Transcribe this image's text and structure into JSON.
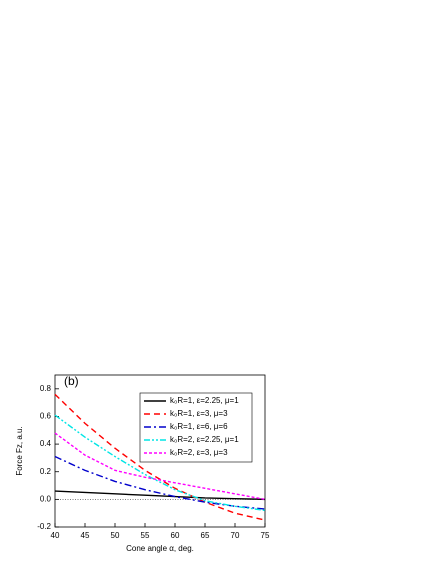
{
  "chart_data": {
    "type": "line",
    "annotation": "(b)",
    "x_label": "Cone angle α, deg.",
    "y_label": "Force Fz, a.u.",
    "x": [
      40,
      45,
      50,
      55,
      60,
      65,
      70,
      75
    ],
    "xlim": [
      40,
      75
    ],
    "xticks": [
      40,
      45,
      50,
      55,
      60,
      65,
      70,
      75
    ],
    "ylim": [
      -0.2,
      0.9
    ],
    "yticks": [
      {
        "value": -0.2,
        "label": "-0.2"
      },
      {
        "value": 0,
        "label": "0.0"
      },
      {
        "value": 0.2,
        "label": "0.2"
      },
      {
        "value": 0.4,
        "label": "0.4"
      },
      {
        "value": 0.6,
        "label": "0.6"
      },
      {
        "value": 0.8,
        "label": "0.8"
      }
    ],
    "legend": "upper right",
    "series": [
      {
        "name": "k₀R=1, ε=2.25, μ=1",
        "color": "#000000",
        "dash": "none",
        "values": [
          0.06,
          0.05,
          0.04,
          0.03,
          0.02,
          0.01,
          0.005,
          0.0
        ]
      },
      {
        "name": "k₀R=1, ε=3, μ=3",
        "color": "#ff0000",
        "dash": "6 4",
        "values": [
          0.76,
          0.55,
          0.37,
          0.21,
          0.08,
          -0.02,
          -0.1,
          -0.15
        ]
      },
      {
        "name": "k₀R=1, ε=6, μ=6",
        "color": "#0000cc",
        "dash": "7 3 2 3",
        "values": [
          0.31,
          0.21,
          0.13,
          0.07,
          0.02,
          -0.02,
          -0.05,
          -0.07
        ]
      },
      {
        "name": "k₀R=2, ε=2.25, μ=1",
        "color": "#00e5e5",
        "dash": "6 2 2 2 2 2",
        "values": [
          0.61,
          0.45,
          0.31,
          0.18,
          0.07,
          -0.01,
          -0.05,
          -0.08
        ]
      },
      {
        "name": "k₀R=2, ε=3, μ=3",
        "color": "#ff00ff",
        "dash": "3 2",
        "values": [
          0.48,
          0.32,
          0.21,
          0.16,
          0.12,
          0.08,
          0.04,
          0.0
        ]
      }
    ]
  }
}
